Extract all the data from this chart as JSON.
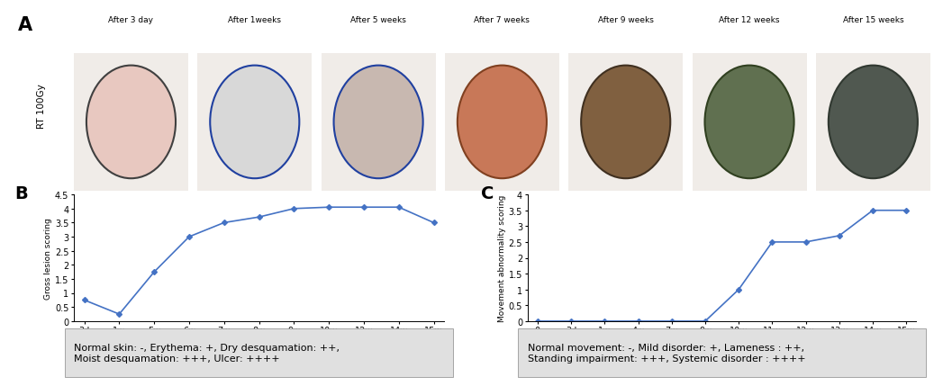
{
  "panel_B": {
    "x_labels": [
      "3d",
      "1w",
      "5w",
      "6w",
      "7w",
      "8w",
      "9w",
      "10w",
      "12w",
      "14w",
      "15w"
    ],
    "y_values": [
      0.75,
      0.25,
      1.75,
      3.0,
      3.5,
      3.7,
      4.0,
      4.05,
      4.05,
      4.05,
      3.5
    ],
    "ylabel": "Gross lesion scoring",
    "ylim": [
      0,
      4.5
    ],
    "yticks": [
      0,
      0.5,
      1,
      1.5,
      2,
      2.5,
      3,
      3.5,
      4,
      4.5
    ],
    "line_color": "#4472C4",
    "marker": "D",
    "marker_size": 3,
    "caption": "Normal skin: -, Erythema: +, Dry desquamation: ++,\nMoist desquamation: +++, Ulcer: ++++"
  },
  "panel_C": {
    "x_labels": [
      "0",
      "3d",
      "1w",
      "4w",
      "7w",
      "9w",
      "10w",
      "11w",
      "12w",
      "13w",
      "14w",
      "15w"
    ],
    "y_values": [
      0,
      0,
      0,
      0,
      0,
      0,
      1.0,
      2.5,
      2.5,
      2.7,
      3.5,
      3.5
    ],
    "ylabel": "Movement abnormality scoring",
    "ylim": [
      0,
      4
    ],
    "yticks": [
      0,
      0.5,
      1,
      1.5,
      2,
      2.5,
      3,
      3.5,
      4
    ],
    "line_color": "#4472C4",
    "marker": "D",
    "marker_size": 3,
    "caption": "Normal movement: -, Mild disorder: +, Lameness : ++,\nStanding impairment: +++, Systemic disorder : ++++"
  },
  "panel_A_label": "A",
  "panel_B_label": "B",
  "panel_C_label": "C",
  "photo_labels": [
    "After 3 day",
    "After 1weeks",
    "After 5 weeks",
    "After 7 weeks",
    "After 9 weeks",
    "After 12 weeks",
    "After 15 weeks"
  ],
  "rt_label": "RT 100Gy",
  "bg_color": "#ffffff",
  "caption_bg_color": "#e0e0e0",
  "photo_colors": [
    "#e8c8c0",
    "#d8d8d8",
    "#c8b8b0",
    "#c87858",
    "#806040",
    "#607050",
    "#505850"
  ],
  "photo_outline_colors": [
    "#404040",
    "#2040a0",
    "#2040a0",
    "#804020",
    "#403020",
    "#304020",
    "#303830"
  ]
}
